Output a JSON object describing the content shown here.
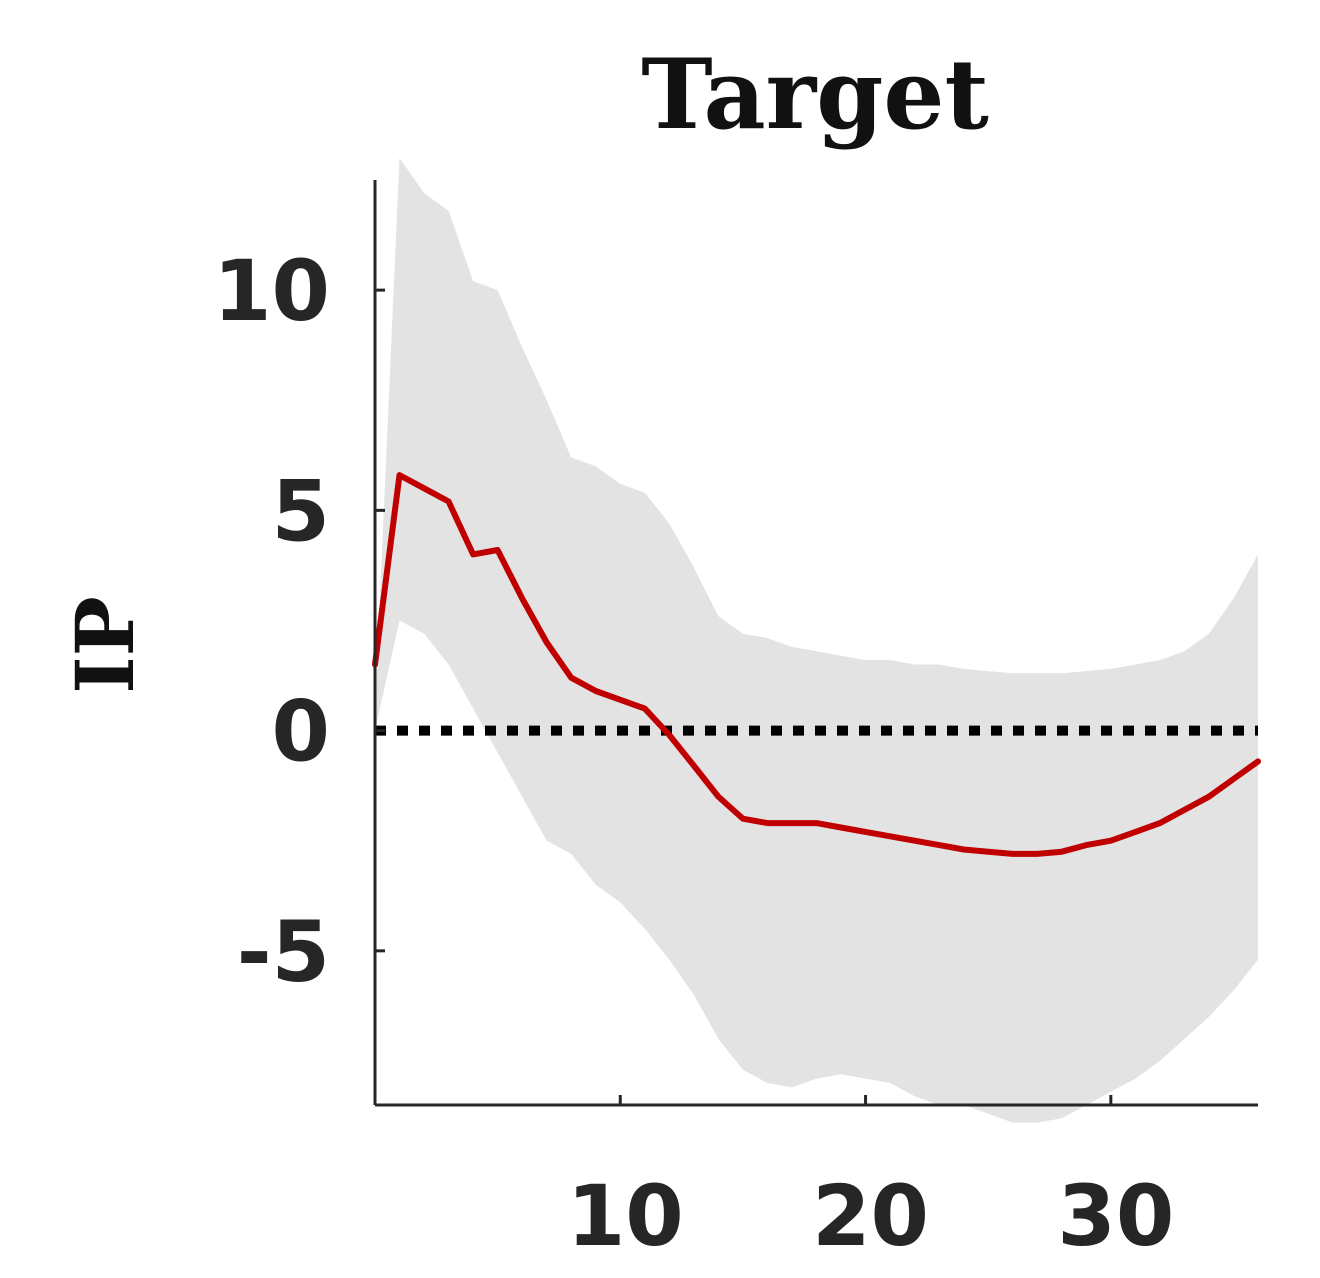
{
  "chart_data": {
    "type": "area",
    "title": "Target",
    "xlabel": "",
    "ylabel": "IP",
    "xlim": [
      0,
      36
    ],
    "ylim": [
      -8.5,
      12.5
    ],
    "xticks": [
      10,
      20,
      30
    ],
    "yticks": [
      10,
      5,
      0,
      -5
    ],
    "xtick_labels": [
      "10",
      "20",
      "30"
    ],
    "ytick_labels": [
      "10",
      "5",
      "0",
      "-5"
    ],
    "grid": false,
    "colors": {
      "response": "#c00000",
      "band": "#e3e3e3",
      "zero_line": "#000000",
      "axis": "#262626"
    },
    "x": [
      0,
      1,
      2,
      3,
      4,
      5,
      6,
      7,
      8,
      9,
      10,
      11,
      12,
      13,
      14,
      15,
      16,
      17,
      18,
      19,
      20,
      21,
      22,
      23,
      24,
      25,
      26,
      27,
      28,
      29,
      30,
      31,
      32,
      33,
      34,
      35,
      36
    ],
    "series": [
      {
        "role": "response",
        "values": [
          1.5,
          5.8,
          5.5,
          5.2,
          4.0,
          4.1,
          3.0,
          2.0,
          1.2,
          0.9,
          0.7,
          0.5,
          -0.1,
          -0.8,
          -1.5,
          -2.0,
          -2.1,
          -2.1,
          -2.1,
          -2.2,
          -2.3,
          -2.4,
          -2.5,
          -2.6,
          -2.7,
          -2.75,
          -2.8,
          -2.8,
          -2.75,
          -2.6,
          -2.5,
          -2.3,
          -2.1,
          -1.8,
          -1.5,
          -1.1,
          -0.7
        ]
      },
      {
        "role": "upper-band",
        "values": [
          0.5,
          13.0,
          12.2,
          11.8,
          10.2,
          10.0,
          8.7,
          7.5,
          6.2,
          6.0,
          5.6,
          5.4,
          4.7,
          3.7,
          2.6,
          2.2,
          2.1,
          1.9,
          1.8,
          1.7,
          1.6,
          1.6,
          1.5,
          1.5,
          1.4,
          1.35,
          1.3,
          1.3,
          1.3,
          1.35,
          1.4,
          1.5,
          1.6,
          1.8,
          2.2,
          3.0,
          4.0
        ]
      },
      {
        "role": "lower-band",
        "values": [
          0.0,
          2.5,
          2.2,
          1.5,
          0.5,
          -0.5,
          -1.5,
          -2.5,
          -2.8,
          -3.5,
          -3.9,
          -4.5,
          -5.2,
          -6.0,
          -7.0,
          -7.7,
          -8.0,
          -8.1,
          -7.9,
          -7.8,
          -7.9,
          -8.0,
          -8.3,
          -8.5,
          -8.5,
          -8.7,
          -8.9,
          -8.9,
          -8.8,
          -8.5,
          -8.2,
          -7.9,
          -7.5,
          -7.0,
          -6.5,
          -5.9,
          -5.2
        ]
      }
    ]
  }
}
